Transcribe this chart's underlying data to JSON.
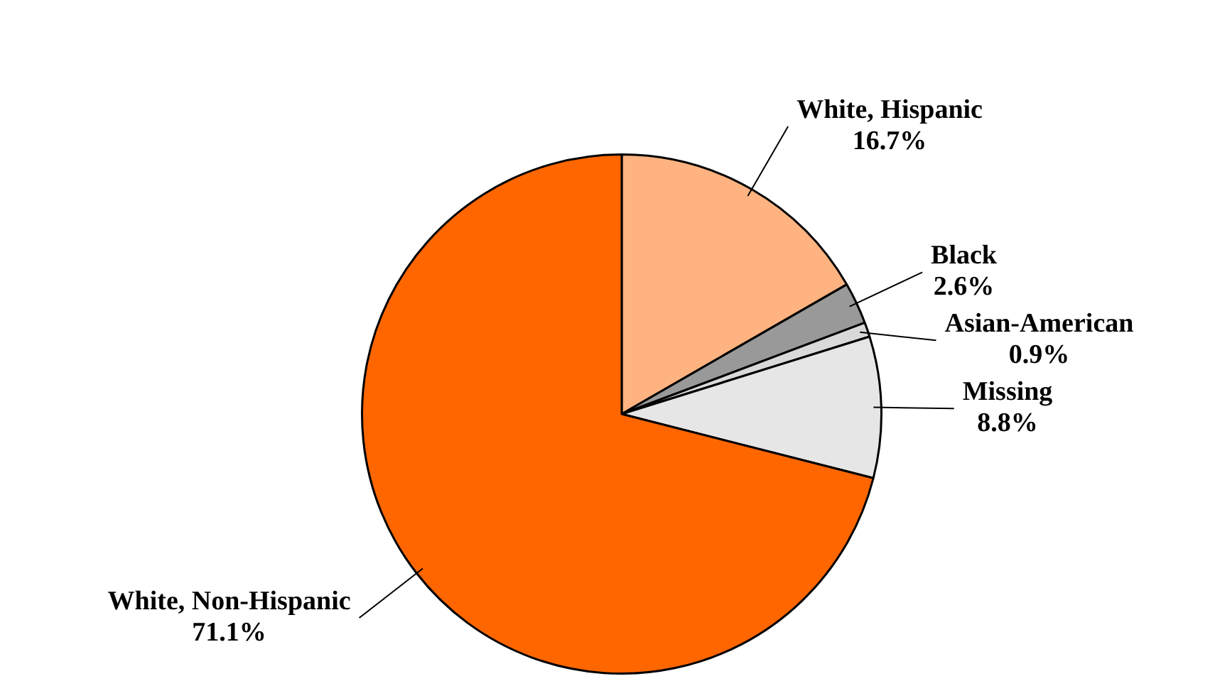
{
  "chart_data": {
    "type": "pie",
    "categories": [
      "White, Hispanic",
      "Black",
      "Asian-American",
      "Missing",
      "White, Non-Hispanic"
    ],
    "values": [
      16.7,
      2.6,
      0.9,
      8.8,
      71.1
    ],
    "colors": [
      "#ffb380",
      "#999999",
      "#d9d9d9",
      "#e6e6e6",
      "#ff6600"
    ],
    "value_labels": [
      "16.7%",
      "2.6%",
      "0.9%",
      "8.8%",
      "71.1%"
    ],
    "legend": false
  }
}
